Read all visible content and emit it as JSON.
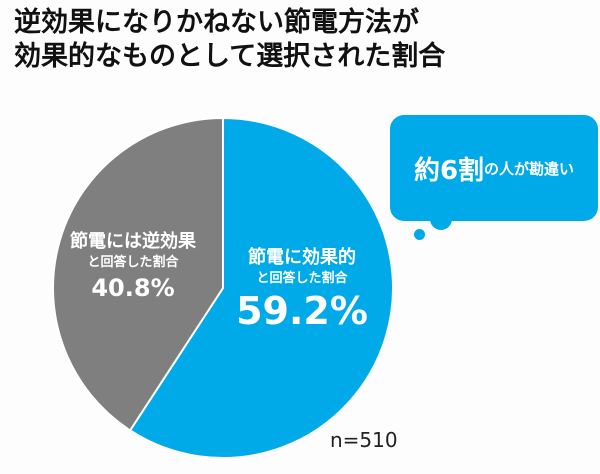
{
  "title": {
    "line1": "逆効果になりかねない節電方法が",
    "line2": "効果的なものとして選択された割合"
  },
  "colors": {
    "effective": "#00a9e8",
    "counter": "#7f7f7f",
    "bubble": "#00a9e8"
  },
  "labels": {
    "effective": {
      "line1": "節電に効果的",
      "line2": "と回答した割合",
      "pct": "59.2%"
    },
    "counter": {
      "line1": "節電には逆効果",
      "line2": "と回答した割合",
      "pct": "40.8%"
    }
  },
  "callout": {
    "big": "約6割",
    "small": "の人が勘違い"
  },
  "sample": "n=510",
  "chart_data": {
    "type": "pie",
    "title": "逆効果になりかねない節電方法が効果的なものとして選択された割合",
    "categories": [
      "節電に効果的と回答した割合",
      "節電には逆効果と回答した割合"
    ],
    "values": [
      59.2,
      40.8
    ],
    "colors": [
      "#00a9e8",
      "#7f7f7f"
    ],
    "annotations": [
      "約6割の人が勘違い",
      "n=510"
    ],
    "start_angle": "12 o'clock, clockwise"
  }
}
